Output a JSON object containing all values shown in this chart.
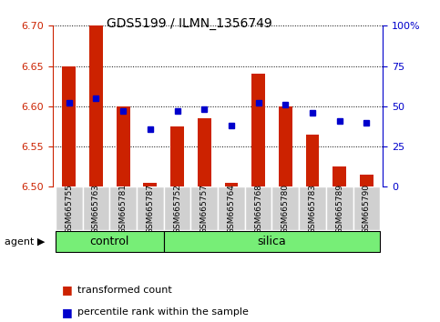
{
  "title": "GDS5199 / ILMN_1356749",
  "samples": [
    "GSM665755",
    "GSM665763",
    "GSM665781",
    "GSM665787",
    "GSM665752",
    "GSM665757",
    "GSM665764",
    "GSM665768",
    "GSM665780",
    "GSM665783",
    "GSM665789",
    "GSM665790"
  ],
  "transformed_counts": [
    6.65,
    6.7,
    6.6,
    6.505,
    6.575,
    6.585,
    6.505,
    6.64,
    6.6,
    6.565,
    6.525,
    6.515
  ],
  "percentile_ranks": [
    52,
    55,
    47,
    36,
    47,
    48,
    38,
    52,
    51,
    46,
    41,
    40
  ],
  "y_min": 6.5,
  "y_max": 6.7,
  "y_ticks": [
    6.5,
    6.55,
    6.6,
    6.65,
    6.7
  ],
  "y_right_ticks": [
    0,
    25,
    50,
    75,
    100
  ],
  "bar_color": "#cc2200",
  "dot_color": "#0000cc",
  "bar_width": 0.5,
  "control_count": 4,
  "silica_count": 8,
  "control_label": "control",
  "silica_label": "silica",
  "agent_label": "agent",
  "legend1": "transformed count",
  "legend2": "percentile rank within the sample",
  "group_color": "#77ee77",
  "tick_color_left": "#cc2200",
  "tick_color_right": "#0000cc"
}
